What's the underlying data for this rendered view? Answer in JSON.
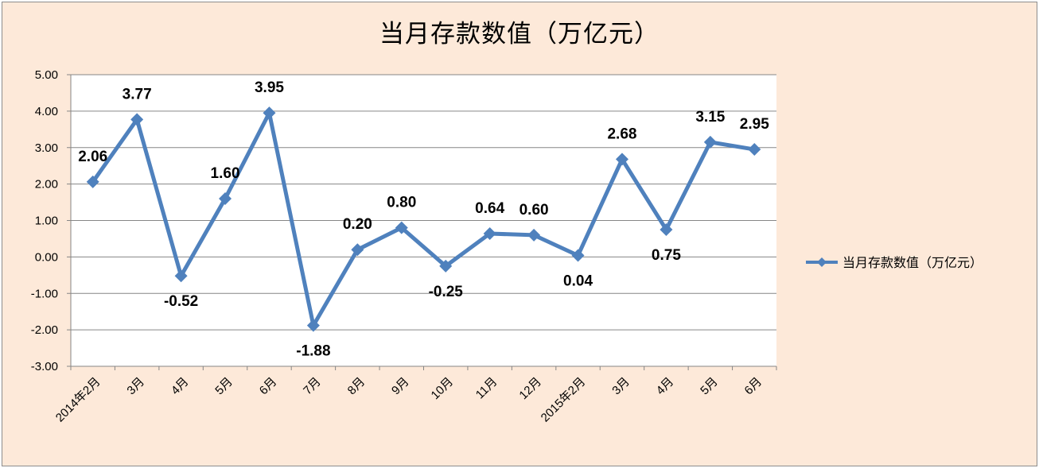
{
  "chart_data": {
    "type": "line",
    "title": "当月存款数值（万亿元）",
    "categories": [
      "2014年2月",
      "3月",
      "4月",
      "5月",
      "6月",
      "7月",
      "8月",
      "9月",
      "10月",
      "11月",
      "12月",
      "2015年2月",
      "3月",
      "4月",
      "5月",
      "6月"
    ],
    "series": [
      {
        "name": "当月存款数值（万亿元）",
        "values": [
          2.06,
          3.77,
          -0.52,
          1.6,
          3.95,
          -1.88,
          0.2,
          0.8,
          -0.25,
          0.64,
          0.6,
          0.04,
          2.68,
          0.75,
          3.15,
          2.95
        ],
        "labels": [
          "2.06",
          "3.77",
          "-0.52",
          "1.60",
          "3.95",
          "-1.88",
          "0.20",
          "0.80",
          "-0.25",
          "0.64",
          "0.60",
          "0.04",
          "2.68",
          "0.75",
          "3.15",
          "2.95"
        ]
      }
    ],
    "yticks": [
      "5.00",
      "4.00",
      "3.00",
      "2.00",
      "1.00",
      "0.00",
      "-1.00",
      "-2.00",
      "-3.00"
    ],
    "ylim": [
      -3,
      5
    ],
    "grid": true,
    "legend_position": "right",
    "colors": {
      "series": "#4f81bd",
      "background": "#fde9d9",
      "plot": "#ffffff",
      "grid": "#868686"
    }
  }
}
